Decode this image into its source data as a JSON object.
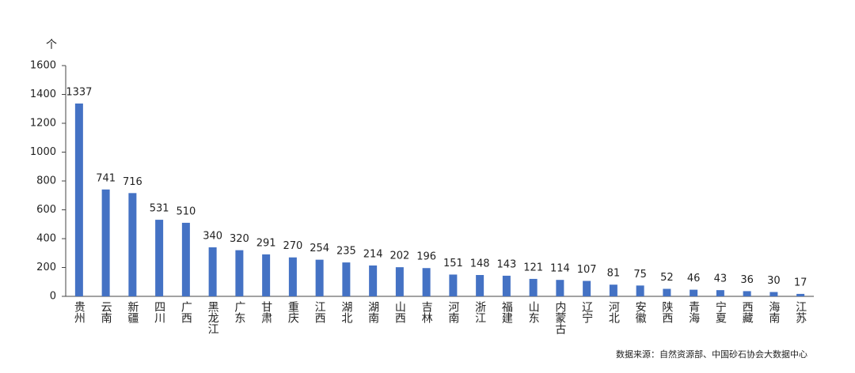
{
  "chart_data": {
    "type": "bar",
    "y_unit": "个",
    "categories": [
      "贵州",
      "云南",
      "新疆",
      "四川",
      "广西",
      "黑龙江",
      "广东",
      "甘肃",
      "重庆",
      "江西",
      "湖北",
      "湖南",
      "山西",
      "吉林",
      "河南",
      "浙江",
      "福建",
      "山东",
      "内蒙古",
      "辽宁",
      "河北",
      "安徽",
      "陕西",
      "青海",
      "宁夏",
      "西藏",
      "海南",
      "江苏"
    ],
    "values": [
      1337,
      741,
      716,
      531,
      510,
      340,
      320,
      291,
      270,
      254,
      235,
      214,
      202,
      196,
      151,
      148,
      143,
      121,
      114,
      107,
      81,
      75,
      52,
      46,
      43,
      36,
      30,
      17
    ],
    "color": "#4472c4",
    "ylim": [
      0,
      1600
    ],
    "yticks": [
      0,
      200,
      400,
      600,
      800,
      1000,
      1200,
      1400,
      1600
    ],
    "grid": false,
    "source": "数据来源：自然资源部、中国砂石协会大数据中心"
  }
}
